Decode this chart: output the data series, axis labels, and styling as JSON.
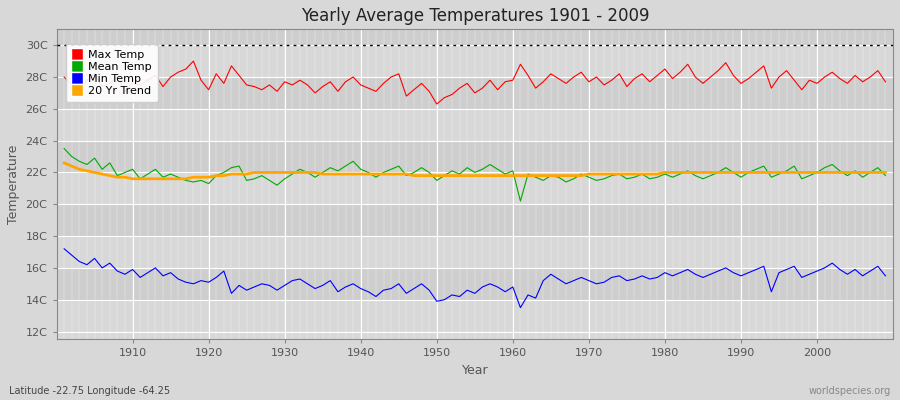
{
  "title": "Yearly Average Temperatures 1901 - 2009",
  "xlabel": "Year",
  "ylabel": "Temperature",
  "footnote_left": "Latitude -22.75 Longitude -64.25",
  "footnote_right": "worldspecies.org",
  "years_start": 1901,
  "years_end": 2009,
  "yticks": [
    12,
    14,
    16,
    18,
    20,
    22,
    24,
    26,
    28,
    30
  ],
  "ylim": [
    11.5,
    31.0
  ],
  "xlim": [
    1900,
    2010
  ],
  "bg_color": "#d8d8d8",
  "plot_bg": "#d8d8d8",
  "band_colors": [
    "#d0d0d0",
    "#c8c8c8"
  ],
  "grid_color": "#ffffff",
  "max_temp_color": "#ff0000",
  "mean_temp_color": "#00aa00",
  "min_temp_color": "#0000ff",
  "trend_color": "#ffa500",
  "legend_labels": [
    "Max Temp",
    "Mean Temp",
    "Min Temp",
    "20 Yr Trend"
  ],
  "legend_colors": [
    "#ff0000",
    "#00aa00",
    "#0000ff",
    "#ffa500"
  ],
  "dotted_line_y": 30,
  "max_temps": [
    28.0,
    27.5,
    27.3,
    27.8,
    28.2,
    27.4,
    27.6,
    28.0,
    27.1,
    27.6,
    27.5,
    27.8,
    28.1,
    27.4,
    28.0,
    28.3,
    28.5,
    29.0,
    27.8,
    27.2,
    28.2,
    27.6,
    28.7,
    28.1,
    27.5,
    27.4,
    27.2,
    27.5,
    27.1,
    27.7,
    27.5,
    27.8,
    27.5,
    27.0,
    27.4,
    27.7,
    27.1,
    27.7,
    28.0,
    27.5,
    27.3,
    27.1,
    27.6,
    28.0,
    28.2,
    26.8,
    27.2,
    27.6,
    27.1,
    26.3,
    26.7,
    26.9,
    27.3,
    27.6,
    27.0,
    27.3,
    27.8,
    27.2,
    27.7,
    27.8,
    28.8,
    28.1,
    27.3,
    27.7,
    28.2,
    27.9,
    27.6,
    28.0,
    28.3,
    27.7,
    28.0,
    27.5,
    27.8,
    28.2,
    27.4,
    27.9,
    28.2,
    27.7,
    28.1,
    28.5,
    27.9,
    28.3,
    28.8,
    28.0,
    27.6,
    28.0,
    28.4,
    28.9,
    28.1,
    27.6,
    27.9,
    28.3,
    28.7,
    27.3,
    28.0,
    28.4,
    27.8,
    27.2,
    27.8,
    27.6,
    28.0,
    28.3,
    27.9,
    27.6,
    28.1,
    27.7,
    28.0,
    28.4,
    27.7
  ],
  "mean_temps": [
    23.5,
    23.0,
    22.7,
    22.5,
    22.9,
    22.2,
    22.6,
    21.8,
    22.0,
    22.2,
    21.6,
    21.9,
    22.2,
    21.7,
    21.9,
    21.7,
    21.5,
    21.4,
    21.5,
    21.3,
    21.8,
    22.0,
    22.3,
    22.4,
    21.5,
    21.6,
    21.8,
    21.5,
    21.2,
    21.6,
    21.9,
    22.2,
    22.0,
    21.7,
    22.0,
    22.3,
    22.1,
    22.4,
    22.7,
    22.2,
    22.0,
    21.7,
    22.0,
    22.2,
    22.4,
    21.8,
    22.0,
    22.3,
    22.0,
    21.5,
    21.8,
    22.1,
    21.9,
    22.3,
    22.0,
    22.2,
    22.5,
    22.2,
    21.9,
    22.1,
    20.2,
    21.9,
    21.7,
    21.5,
    21.8,
    21.7,
    21.4,
    21.6,
    21.9,
    21.7,
    21.5,
    21.6,
    21.8,
    21.9,
    21.6,
    21.7,
    21.9,
    21.6,
    21.7,
    21.9,
    21.7,
    21.9,
    22.1,
    21.8,
    21.6,
    21.8,
    22.0,
    22.3,
    22.0,
    21.7,
    22.0,
    22.2,
    22.4,
    21.7,
    21.9,
    22.1,
    22.4,
    21.6,
    21.8,
    22.0,
    22.3,
    22.5,
    22.1,
    21.8,
    22.1,
    21.7,
    22.0,
    22.3,
    21.8
  ],
  "min_temps": [
    17.2,
    16.8,
    16.4,
    16.2,
    16.6,
    16.0,
    16.3,
    15.8,
    15.6,
    15.9,
    15.4,
    15.7,
    16.0,
    15.5,
    15.7,
    15.3,
    15.1,
    15.0,
    15.2,
    15.1,
    15.4,
    15.8,
    14.4,
    14.9,
    14.6,
    14.8,
    15.0,
    14.9,
    14.6,
    14.9,
    15.2,
    15.3,
    15.0,
    14.7,
    14.9,
    15.2,
    14.5,
    14.8,
    15.0,
    14.7,
    14.5,
    14.2,
    14.6,
    14.7,
    15.0,
    14.4,
    14.7,
    15.0,
    14.6,
    13.9,
    14.0,
    14.3,
    14.2,
    14.6,
    14.4,
    14.8,
    15.0,
    14.8,
    14.5,
    14.8,
    13.5,
    14.3,
    14.1,
    15.2,
    15.6,
    15.3,
    15.0,
    15.2,
    15.4,
    15.2,
    15.0,
    15.1,
    15.4,
    15.5,
    15.2,
    15.3,
    15.5,
    15.3,
    15.4,
    15.7,
    15.5,
    15.7,
    15.9,
    15.6,
    15.4,
    15.6,
    15.8,
    16.0,
    15.7,
    15.5,
    15.7,
    15.9,
    16.1,
    14.5,
    15.7,
    15.9,
    16.1,
    15.4,
    15.6,
    15.8,
    16.0,
    16.3,
    15.9,
    15.6,
    15.9,
    15.5,
    15.8,
    16.1,
    15.5
  ],
  "trend_temps": [
    22.6,
    22.4,
    22.2,
    22.1,
    22.0,
    21.9,
    21.8,
    21.7,
    21.7,
    21.6,
    21.6,
    21.6,
    21.6,
    21.6,
    21.6,
    21.6,
    21.6,
    21.7,
    21.7,
    21.7,
    21.8,
    21.8,
    21.9,
    21.9,
    21.9,
    22.0,
    22.0,
    22.0,
    22.0,
    22.0,
    22.0,
    22.0,
    22.0,
    22.0,
    21.9,
    21.9,
    21.9,
    21.9,
    21.9,
    21.9,
    21.9,
    21.9,
    21.9,
    21.9,
    21.9,
    21.9,
    21.8,
    21.8,
    21.8,
    21.8,
    21.8,
    21.8,
    21.8,
    21.8,
    21.8,
    21.8,
    21.8,
    21.8,
    21.8,
    21.8,
    21.8,
    21.8,
    21.8,
    21.8,
    21.8,
    21.8,
    21.8,
    21.8,
    21.8,
    21.9,
    21.9,
    21.9,
    21.9,
    21.9,
    21.9,
    21.9,
    21.9,
    21.9,
    21.9,
    22.0,
    22.0,
    22.0,
    22.0,
    22.0,
    22.0,
    22.0,
    22.0,
    22.0,
    22.0,
    22.0,
    22.0,
    22.0,
    22.0,
    22.0,
    22.0,
    22.0,
    22.0,
    22.0,
    22.0,
    22.0,
    22.0,
    22.0,
    22.0,
    22.0,
    22.0,
    22.0,
    22.0,
    22.0,
    22.0
  ]
}
